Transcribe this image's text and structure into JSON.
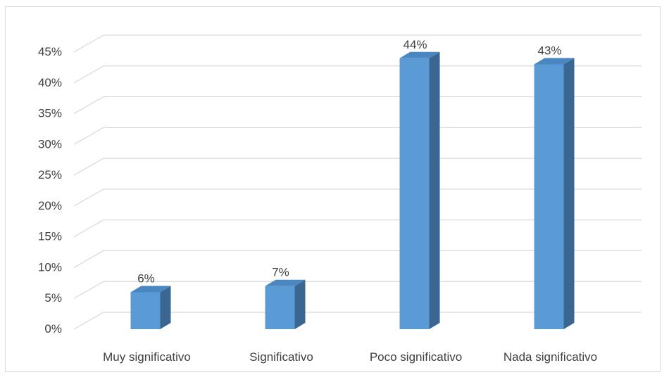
{
  "chart_data": {
    "type": "bar",
    "title": "",
    "xlabel": "",
    "ylabel": "",
    "categories": [
      "Muy significativo",
      "Significativo",
      "Poco significativo",
      "Nada significativo"
    ],
    "values": [
      0.06,
      0.07,
      0.44,
      0.43
    ],
    "data_labels": [
      "6%",
      "7%",
      "44%",
      "43%"
    ],
    "ylim": [
      0,
      0.45
    ],
    "yticks": [
      0,
      0.05,
      0.1,
      0.15,
      0.2,
      0.25,
      0.3,
      0.35,
      0.4,
      0.45
    ],
    "ytick_labels": [
      "0%",
      "5%",
      "10%",
      "15%",
      "20%",
      "25%",
      "30%",
      "35%",
      "40%",
      "45%"
    ],
    "grid": true,
    "legend": false,
    "style": "3d-column",
    "colors": {
      "bar_front": "#5b9bd5",
      "bar_side": "#3a6791",
      "bar_top": "#4a86c0",
      "grid": "#d9d9d9",
      "text": "#404040"
    }
  }
}
